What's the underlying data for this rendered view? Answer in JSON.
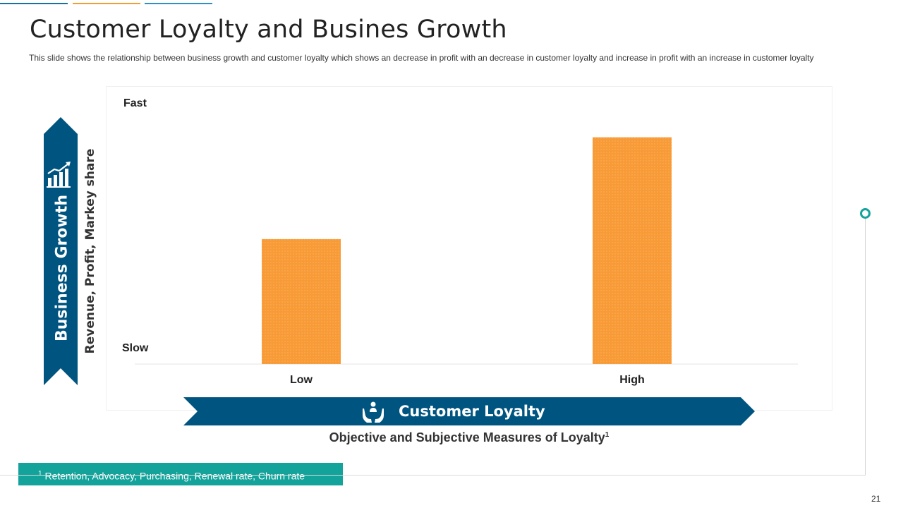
{
  "slide": {
    "title": "Customer Loyalty and Busines Growth",
    "subtitle": "This slide shows the relationship between business growth and customer loyalty which shows an decrease in profit with an decrease in customer loyalty and increase in profit with an increase in customer loyalty",
    "side_label": "Business Growth",
    "y_axis_label": "Revenue, Profit, Markey share",
    "bottom_label": "Customer Loyalty",
    "measures_text": "Objective and Subjective Measures of Loyalty",
    "measures_sup": "1",
    "footnote_sup": "1",
    "footnote_text": "Retention, Advocacy, Purchasing, Renewal rate, Churn rate",
    "page_number": "21",
    "icons": {
      "side": "growth-chart-icon",
      "bottom": "hands-holding-person-icon"
    }
  },
  "colors": {
    "navy": "#005480",
    "orange": "#f89a35",
    "teal": "#13a39b",
    "topline_blue": "#1b6fa8",
    "topline_orange": "#f0a030",
    "topline_light_blue": "#2e8fc9"
  },
  "chart_data": {
    "type": "bar",
    "categories": [
      "Low",
      "High"
    ],
    "values": [
      0.54,
      0.98
    ],
    "ylim": [
      0,
      1
    ],
    "y_tick_labels": [
      "Slow",
      "Fast"
    ],
    "xlabel": "Customer Loyalty",
    "ylabel": "Revenue, Profit, Markey share",
    "grid": false,
    "legend": "none",
    "bar_color": "#f89a35"
  }
}
